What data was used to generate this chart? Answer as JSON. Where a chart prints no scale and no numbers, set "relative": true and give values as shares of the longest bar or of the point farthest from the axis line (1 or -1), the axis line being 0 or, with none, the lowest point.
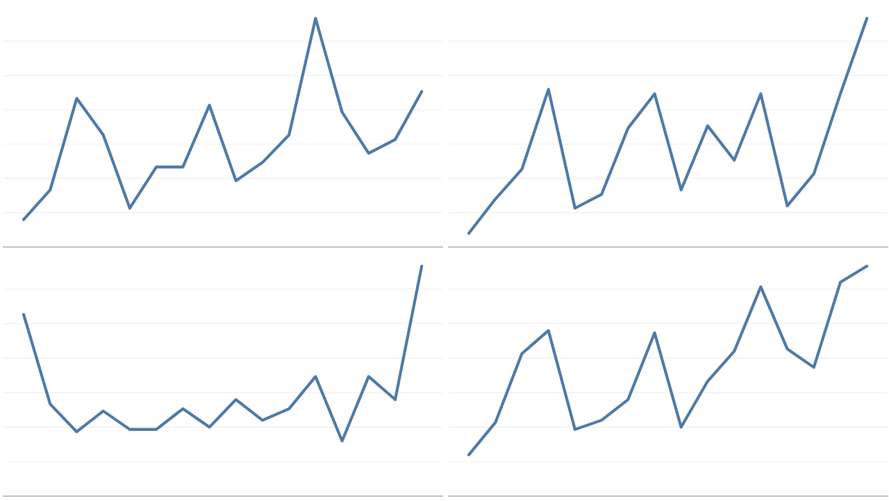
{
  "chart_data": [
    {
      "type": "line",
      "relative": true,
      "grid": "y",
      "categories": [
        null,
        null,
        null,
        null,
        null,
        null,
        null,
        null,
        null,
        null,
        null,
        null,
        null,
        null,
        null,
        null
      ],
      "series": [
        {
          "color": "#4e79a7",
          "values": [
            0.12,
            0.25,
            0.65,
            0.49,
            0.17,
            0.35,
            0.35,
            0.62,
            0.29,
            0.37,
            0.49,
            1,
            0.59,
            0.41,
            0.47,
            0.68
          ]
        }
      ]
    },
    {
      "type": "line",
      "relative": true,
      "grid": "y",
      "categories": [
        null,
        null,
        null,
        null,
        null,
        null,
        null,
        null,
        null,
        null,
        null,
        null,
        null,
        null,
        null,
        null
      ],
      "series": [
        {
          "color": "#4e79a7",
          "values": [
            0.06,
            0.21,
            0.34,
            0.69,
            0.17,
            0.23,
            0.52,
            0.67,
            0.25,
            0.53,
            0.38,
            0.67,
            0.18,
            0.32,
            0.67,
            1
          ]
        }
      ]
    },
    {
      "type": "line",
      "relative": true,
      "grid": "y",
      "categories": [
        null,
        null,
        null,
        null,
        null,
        null,
        null,
        null,
        null,
        null,
        null,
        null,
        null,
        null,
        null,
        null
      ],
      "series": [
        {
          "color": "#4e79a7",
          "values": [
            0.79,
            0.4,
            0.28,
            0.37,
            0.29,
            0.29,
            0.38,
            0.3,
            0.42,
            0.33,
            0.38,
            0.52,
            0.24,
            0.52,
            0.42,
            1
          ]
        }
      ]
    },
    {
      "type": "line",
      "relative": true,
      "grid": "y",
      "categories": [
        null,
        null,
        null,
        null,
        null,
        null,
        null,
        null,
        null,
        null,
        null,
        null,
        null,
        null,
        null,
        null
      ],
      "series": [
        {
          "color": "#4e79a7",
          "values": [
            0.18,
            0.32,
            0.62,
            0.72,
            0.29,
            0.33,
            0.42,
            0.71,
            0.3,
            0.5,
            0.63,
            0.91,
            0.64,
            0.56,
            0.93,
            1
          ]
        }
      ]
    }
  ]
}
